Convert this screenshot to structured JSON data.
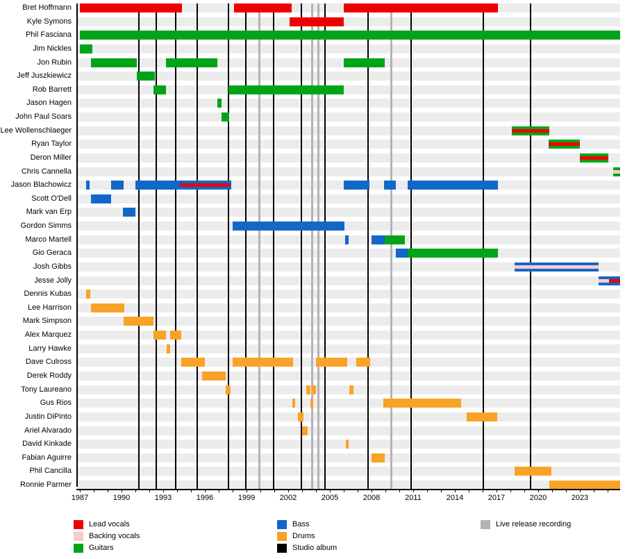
{
  "chart_data": {
    "type": "timeline",
    "x_axis": {
      "start": 1986.85,
      "end": 2025.9,
      "label_years": [
        1987,
        1990,
        1993,
        1996,
        1999,
        2002,
        2005,
        2008,
        2011,
        2014,
        2017,
        2020,
        2023
      ],
      "minor_tick_start": 1987,
      "minor_tick_end": 2025,
      "minor_tick_step": 1
    },
    "roles_colors": {
      "lead_vocals": "#ee0000",
      "backing_vocals": "#f7cbcb",
      "guitars": "#00a419",
      "bass": "#1168c8",
      "drums": "#f9a228",
      "studio_album": "#000000",
      "live_release": "#b3b3b3"
    },
    "studio_album_years": [
      1991.25,
      1992.5,
      1993.9,
      1995.45,
      1997.7,
      1998.95,
      2000.95,
      2002.95,
      2004.65,
      2007.75,
      2010.85,
      2016.05,
      2019.45
    ],
    "live_release_years": [
      1999.9,
      2003.7,
      2004.15,
      2009.4
    ],
    "members": [
      {
        "name": "Bret Hoffmann",
        "bars": [
          {
            "role": "lead_vocals",
            "start": 1987.0,
            "end": 1994.35
          },
          {
            "role": "lead_vocals",
            "start": 1998.1,
            "end": 2002.25
          },
          {
            "role": "lead_vocals",
            "start": 2006.0,
            "end": 2017.1
          }
        ]
      },
      {
        "name": "Kyle Symons",
        "bars": [
          {
            "role": "lead_vocals",
            "start": 2002.1,
            "end": 2006.0
          }
        ]
      },
      {
        "name": "Phil Fasciana",
        "bars": [
          {
            "role": "guitars",
            "start": 1987.0,
            "end": 2025.9
          }
        ]
      },
      {
        "name": "Jim Nickles",
        "bars": [
          {
            "role": "guitars",
            "start": 1987.0,
            "end": 1987.9
          }
        ]
      },
      {
        "name": "Jon Rubin",
        "bars": [
          {
            "role": "guitars",
            "start": 1987.8,
            "end": 1991.1
          },
          {
            "role": "guitars",
            "start": 1993.2,
            "end": 1996.9
          },
          {
            "role": "guitars",
            "start": 2006.0,
            "end": 2008.95
          }
        ]
      },
      {
        "name": "Jeff Juszkiewicz",
        "bars": [
          {
            "role": "guitars",
            "start": 1991.1,
            "end": 1992.4
          }
        ]
      },
      {
        "name": "Rob Barrett",
        "bars": [
          {
            "role": "guitars",
            "start": 1992.3,
            "end": 1993.2
          },
          {
            "role": "guitars",
            "start": 1997.7,
            "end": 2006.0
          }
        ]
      },
      {
        "name": "Jason Hagen",
        "bars": [
          {
            "role": "guitars",
            "start": 1996.9,
            "end": 1997.2
          }
        ]
      },
      {
        "name": "John Paul Soars",
        "bars": [
          {
            "role": "guitars",
            "start": 1997.2,
            "end": 1997.75
          }
        ]
      },
      {
        "name": "Lee Wollenschlaeger",
        "bars": [
          {
            "role": "guitars",
            "start": 2018.1,
            "end": 2020.8,
            "overlays": [
              {
                "role": "lead_vocals",
                "start": 2018.1,
                "end": 2020.8
              }
            ]
          }
        ]
      },
      {
        "name": "Ryan Taylor",
        "bars": [
          {
            "role": "guitars",
            "start": 2020.75,
            "end": 2023.0,
            "overlays": [
              {
                "role": "lead_vocals",
                "start": 2020.75,
                "end": 2023.0
              }
            ]
          }
        ]
      },
      {
        "name": "Deron Miller",
        "bars": [
          {
            "role": "guitars",
            "start": 2023.0,
            "end": 2025.05,
            "overlays": [
              {
                "role": "lead_vocals",
                "start": 2023.0,
                "end": 2025.05
              }
            ]
          }
        ]
      },
      {
        "name": "Chris Cannella",
        "bars": [
          {
            "role": "guitars",
            "start": 2025.4,
            "end": 2025.9,
            "overlays": [
              {
                "role": "backing_vocals",
                "start": 2025.4,
                "end": 2025.9
              }
            ]
          }
        ]
      },
      {
        "name": "Jason Blachowicz",
        "bars": [
          {
            "role": "bass",
            "start": 1987.45,
            "end": 1987.7
          },
          {
            "role": "bass",
            "start": 1989.25,
            "end": 1990.15
          },
          {
            "role": "bass",
            "start": 1991.0,
            "end": 1997.9,
            "overlays": [
              {
                "role": "lead_vocals",
                "start": 1994.2,
                "end": 1997.8
              }
            ]
          },
          {
            "role": "bass",
            "start": 2006.0,
            "end": 2007.85
          },
          {
            "role": "bass",
            "start": 2008.9,
            "end": 2009.75
          },
          {
            "role": "bass",
            "start": 2010.6,
            "end": 2017.1
          }
        ]
      },
      {
        "name": "Scott O'Dell",
        "bars": [
          {
            "role": "bass",
            "start": 1987.8,
            "end": 1989.25
          }
        ]
      },
      {
        "name": "Mark van Erp",
        "bars": [
          {
            "role": "bass",
            "start": 1990.1,
            "end": 1991.0
          }
        ]
      },
      {
        "name": "Gordon Simms",
        "bars": [
          {
            "role": "bass",
            "start": 1998.0,
            "end": 2006.05
          }
        ]
      },
      {
        "name": "Marco Martell",
        "bars": [
          {
            "role": "bass",
            "start": 2006.1,
            "end": 2006.35
          },
          {
            "role": "bass",
            "start": 2008.0,
            "end": 2008.95
          },
          {
            "role": "guitars",
            "start": 2008.95,
            "end": 2010.4
          }
        ]
      },
      {
        "name": "Gio Geraca",
        "bars": [
          {
            "role": "bass",
            "start": 2009.75,
            "end": 2010.6
          },
          {
            "role": "guitars",
            "start": 2010.6,
            "end": 2017.1
          }
        ]
      },
      {
        "name": "Josh Gibbs",
        "bars": [
          {
            "role": "bass",
            "start": 2018.3,
            "end": 2024.35,
            "overlays": [
              {
                "role": "backing_vocals",
                "start": 2018.3,
                "end": 2024.35
              }
            ]
          }
        ]
      },
      {
        "name": "Jesse Jolly",
        "bars": [
          {
            "role": "bass",
            "start": 2024.35,
            "end": 2025.9,
            "overlays": [
              {
                "role": "backing_vocals",
                "start": 2024.35,
                "end": 2025.1
              },
              {
                "role": "lead_vocals",
                "start": 2025.1,
                "end": 2025.9
              }
            ]
          }
        ]
      },
      {
        "name": "Dennis Kubas",
        "bars": [
          {
            "role": "drums",
            "start": 1987.45,
            "end": 1987.75
          }
        ]
      },
      {
        "name": "Lee Harrison",
        "bars": [
          {
            "role": "drums",
            "start": 1987.8,
            "end": 1990.2
          }
        ]
      },
      {
        "name": "Mark Simpson",
        "bars": [
          {
            "role": "drums",
            "start": 1990.15,
            "end": 1992.3
          }
        ]
      },
      {
        "name": "Alex Marquez",
        "bars": [
          {
            "role": "drums",
            "start": 1992.3,
            "end": 1993.2
          },
          {
            "role": "drums",
            "start": 1993.5,
            "end": 1994.3
          }
        ]
      },
      {
        "name": "Larry Hawke",
        "bars": [
          {
            "role": "drums",
            "start": 1993.25,
            "end": 1993.5
          }
        ]
      },
      {
        "name": "Dave Culross",
        "bars": [
          {
            "role": "drums",
            "start": 1994.3,
            "end": 1996.0
          },
          {
            "role": "drums",
            "start": 1998.0,
            "end": 2002.35
          },
          {
            "role": "drums",
            "start": 2004.0,
            "end": 2006.25
          },
          {
            "role": "drums",
            "start": 2006.9,
            "end": 2007.9
          }
        ]
      },
      {
        "name": "Derek Roddy",
        "bars": [
          {
            "role": "drums",
            "start": 1995.8,
            "end": 1997.5
          }
        ]
      },
      {
        "name": "Tony Laureano",
        "bars": [
          {
            "role": "drums",
            "start": 1997.5,
            "end": 1997.85
          },
          {
            "role": "drums",
            "start": 2003.3,
            "end": 2003.6
          },
          {
            "role": "drums",
            "start": 2003.7,
            "end": 2004.0
          },
          {
            "role": "drums",
            "start": 2006.4,
            "end": 2006.7
          }
        ]
      },
      {
        "name": "Gus Rios",
        "bars": [
          {
            "role": "drums",
            "start": 2002.3,
            "end": 2002.5
          },
          {
            "role": "drums",
            "start": 2003.6,
            "end": 2003.8
          },
          {
            "role": "drums",
            "start": 2008.85,
            "end": 2014.45
          }
        ]
      },
      {
        "name": "Justin DiPinto",
        "bars": [
          {
            "role": "drums",
            "start": 2002.7,
            "end": 2003.1
          },
          {
            "role": "drums",
            "start": 2014.85,
            "end": 2017.05
          }
        ]
      },
      {
        "name": "Ariel Alvarado",
        "bars": [
          {
            "role": "drums",
            "start": 2003.0,
            "end": 2003.4
          }
        ]
      },
      {
        "name": "David Kinkade",
        "bars": [
          {
            "role": "drums",
            "start": 2006.15,
            "end": 2006.35
          }
        ]
      },
      {
        "name": "Fabian Aguirre",
        "bars": [
          {
            "role": "drums",
            "start": 2008.0,
            "end": 2008.95
          }
        ]
      },
      {
        "name": "Phil Cancilla",
        "bars": [
          {
            "role": "drums",
            "start": 2018.3,
            "end": 2020.95
          }
        ]
      },
      {
        "name": "Ronnie Parmer",
        "bars": [
          {
            "role": "drums",
            "start": 2020.8,
            "end": 2025.9
          }
        ]
      }
    ]
  },
  "legend": {
    "items": [
      {
        "label": "Lead vocals",
        "role": "lead_vocals"
      },
      {
        "label": "Backing vocals",
        "role": "backing_vocals"
      },
      {
        "label": "Guitars",
        "role": "guitars"
      },
      {
        "label": "Bass",
        "role": "bass"
      },
      {
        "label": "Drums",
        "role": "drums"
      },
      {
        "label": "Studio album",
        "role": "studio_album"
      },
      {
        "label": "Live release recording",
        "role": "live_release"
      }
    ]
  }
}
